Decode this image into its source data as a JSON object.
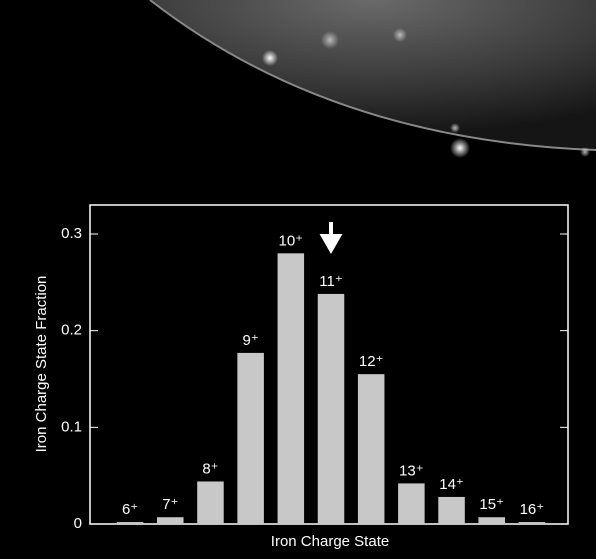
{
  "chart_data": {
    "type": "bar",
    "xlabel": "Iron Charge State",
    "ylabel": "Iron Charge State Fraction",
    "categories": [
      "6⁺",
      "7⁺",
      "8⁺",
      "9⁺",
      "10⁺",
      "11⁺",
      "12⁺",
      "13⁺",
      "14⁺",
      "15⁺",
      "16⁺"
    ],
    "values": [
      0.002,
      0.007,
      0.044,
      0.177,
      0.28,
      0.238,
      0.155,
      0.042,
      0.028,
      0.007,
      0.002
    ],
    "color": "#c8c8c8",
    "ylim": [
      0,
      0.33
    ],
    "yticks": [
      0,
      0.1,
      0.2,
      0.3
    ],
    "grid": false
  }
}
